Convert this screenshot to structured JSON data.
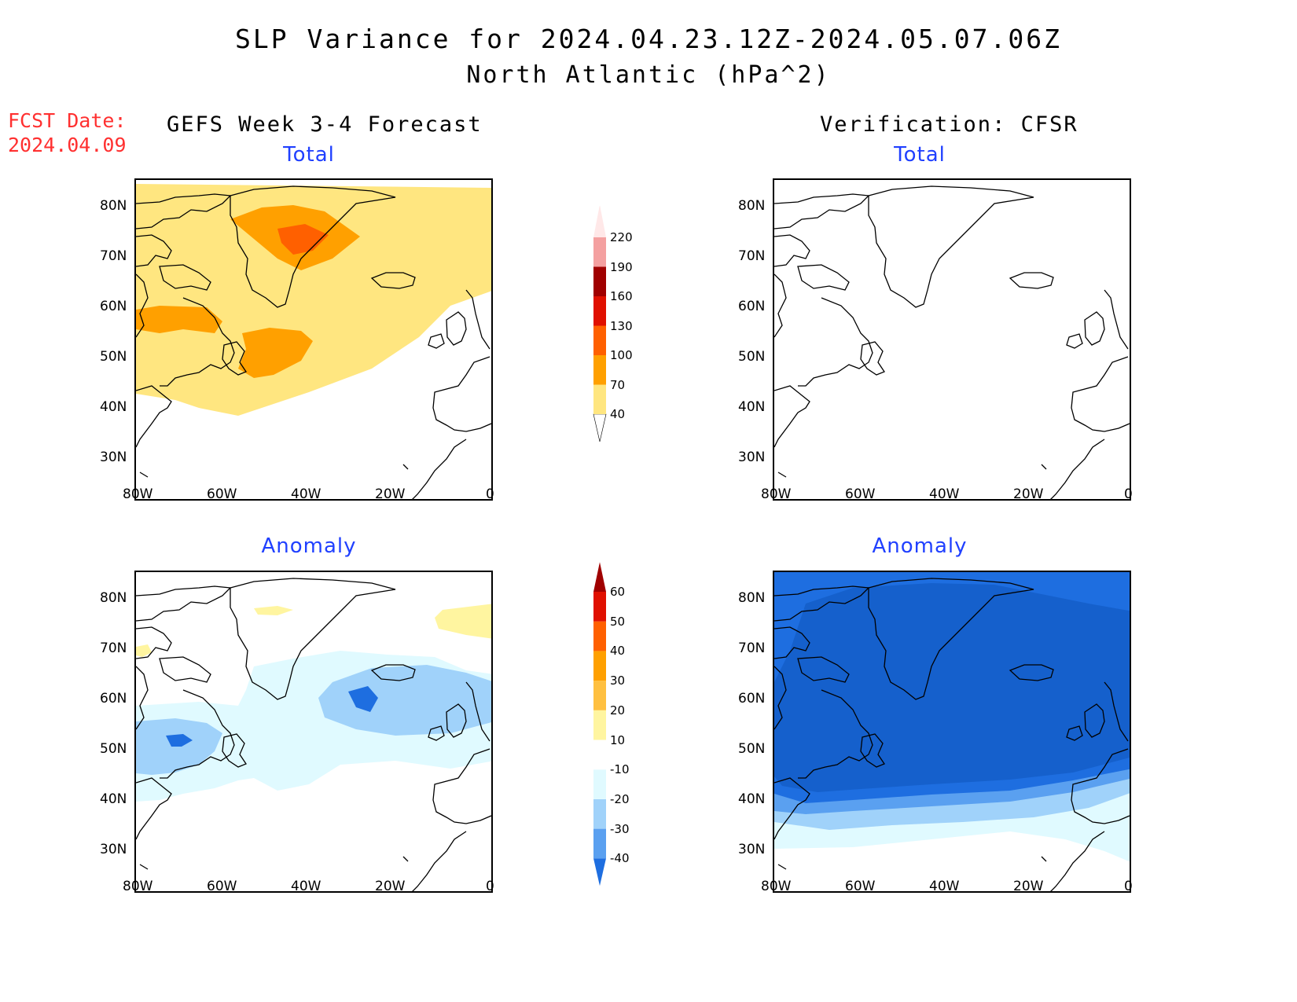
{
  "title": {
    "line1": "SLP Variance for 2024.04.23.12Z-2024.05.07.06Z",
    "line2": "North Atlantic (hPa^2)"
  },
  "forecast_date": {
    "label": "FCST Date:",
    "value": "2024.04.09"
  },
  "columns": {
    "left": "GEFS Week 3-4 Forecast",
    "right": "Verification: CFSR"
  },
  "panels": {
    "fc_total": "Total",
    "fc_anomaly": "Anomaly",
    "ver_total": "Total",
    "ver_anomaly": "Anomaly"
  },
  "axes": {
    "lat_labels": [
      "80N",
      "70N",
      "60N",
      "50N",
      "40N",
      "30N"
    ],
    "lon_labels": [
      "80W",
      "60W",
      "40W",
      "20W",
      "0"
    ]
  },
  "chart_data": [
    {
      "type": "heatmap",
      "title": "Total",
      "colorbar_levels": [
        40,
        70,
        100,
        130,
        160,
        190,
        220
      ],
      "colorbar_colors": [
        "#ffe680",
        "#ffa000",
        "#ff6000",
        "#e01000",
        "#a00000",
        "#f4a0a0",
        "#ffe8e8"
      ],
      "colorbar_labels": [
        "40",
        "70",
        "100",
        "130",
        "160",
        "190",
        "220"
      ]
    },
    {
      "type": "heatmap",
      "title": "Anomaly",
      "colorbar_levels": [
        -40,
        -30,
        -20,
        -10,
        10,
        20,
        30,
        40,
        50,
        60
      ],
      "colorbar_colors": [
        "#1e6ee0",
        "#5aa0f0",
        "#a0d2fa",
        "#e0faff",
        "#ffffff",
        "#fff5a0",
        "#ffc040",
        "#ffa000",
        "#ff6000",
        "#e01000",
        "#a00000"
      ],
      "colorbar_labels": [
        "-40",
        "-30",
        "-20",
        "-10",
        "10",
        "20",
        "30",
        "40",
        "50",
        "60"
      ]
    }
  ],
  "colors": {
    "title_blue": "#2040ff",
    "fcst_red": "#ff3030"
  }
}
